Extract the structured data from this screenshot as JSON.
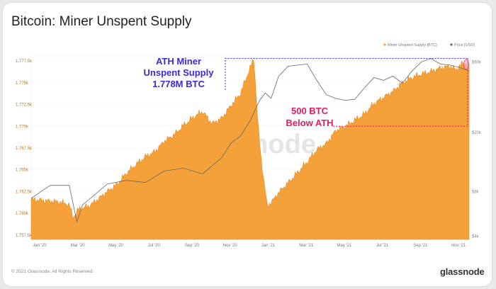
{
  "title": "Bitcoin: Miner Unspent Supply",
  "footer": {
    "copyright": "© 2021 Glassnode. All Rights Reserved.",
    "brand": "glassnode"
  },
  "watermark": "glassnode",
  "chart_data": {
    "type": "area",
    "title": "Bitcoin: Miner Unspent Supply",
    "legend": {
      "placement": "top-right",
      "entries": [
        "Miner Unspent Supply [BTC]",
        "Price [USD]"
      ]
    },
    "series_colors": {
      "supply": "#f5a13a",
      "supply_edge": "#e8891c",
      "price": "#666666",
      "annotation_blue": "#3a2bd9",
      "annotation_pink": "#e8195f"
    },
    "x_ticks": [
      "Jan '20",
      "Mar '20",
      "May '20",
      "Jul '20",
      "Sep '20",
      "Nov '20",
      "Jan '21",
      "Mar '21",
      "May '21",
      "Jul '21",
      "Sep '21",
      "Nov '21"
    ],
    "y_left_ticks": [
      "1.777.5k",
      "1.775k",
      "1.772.5k",
      "1.770k",
      "1.767.5k",
      "1.765k",
      "1.762.5k",
      "1.760k",
      "1.757.5k"
    ],
    "y_left_values": [
      1777.5,
      1775,
      1772.5,
      1770,
      1767.5,
      1765,
      1762.5,
      1760,
      1757.5
    ],
    "y_left_range": [
      1757,
      1778
    ],
    "y_right_ticks": [
      "$60k",
      "$20k",
      "$8k",
      "$4k"
    ],
    "y_right_values": [
      60000,
      20000,
      8000,
      4000
    ],
    "y_right_scale": "log",
    "y_right_range": [
      3800,
      65000
    ],
    "x_range": [
      0,
      23
    ],
    "supply": {
      "name": "Miner Unspent Supply [BTC]",
      "x": [
        0,
        0.5,
        1,
        1.5,
        2,
        2.2,
        2.5,
        3,
        3.5,
        4,
        4.5,
        5,
        5.5,
        6,
        6.5,
        7,
        7.5,
        8,
        8.5,
        9,
        9.5,
        10,
        10.5,
        11,
        11.3,
        11.7,
        11.9,
        12.1,
        12.4,
        12.7,
        13,
        13.5,
        14,
        14.5,
        15,
        15.5,
        16,
        16.5,
        17,
        17.5,
        18,
        18.5,
        19,
        19.5,
        20,
        20.5,
        21,
        21.5,
        22,
        22.3,
        22.7,
        23
      ],
      "values": [
        1761.6,
        1761.5,
        1761.4,
        1761.3,
        1761.0,
        1759.5,
        1760.5,
        1760.8,
        1761.6,
        1762.5,
        1763.3,
        1764.6,
        1765.6,
        1766.5,
        1767.1,
        1768.3,
        1769.0,
        1770.1,
        1771.0,
        1771.7,
        1770.3,
        1770.9,
        1772.4,
        1773.8,
        1775.6,
        1777.8,
        1770.5,
        1765.8,
        1760.8,
        1761.5,
        1762.4,
        1763.5,
        1764.7,
        1765.9,
        1767.3,
        1768.0,
        1769.5,
        1770.0,
        1770.7,
        1771.4,
        1772.6,
        1773.3,
        1774.0,
        1775.0,
        1775.6,
        1776.0,
        1776.3,
        1776.7,
        1776.9,
        1776.5,
        1777.3,
        1777.2
      ]
    },
    "price": {
      "name": "Price [USD]",
      "x": [
        0,
        1,
        2,
        2.4,
        2.7,
        3,
        4,
        5,
        6,
        7,
        8,
        9,
        10,
        10.5,
        11,
        11.5,
        12,
        12.3,
        12.6,
        13,
        13.5,
        14,
        14.5,
        15,
        15.5,
        16,
        16.5,
        17,
        17.5,
        18,
        18.5,
        19,
        19.5,
        20,
        20.5,
        21,
        21.5,
        22,
        22.5,
        23
      ],
      "values": [
        7200,
        8800,
        8800,
        5000,
        6500,
        7000,
        9000,
        9500,
        9200,
        11000,
        11500,
        10500,
        13500,
        17000,
        19000,
        24000,
        33000,
        37000,
        34000,
        48000,
        56000,
        57000,
        58000,
        45000,
        36000,
        34000,
        33000,
        33500,
        40000,
        47000,
        45000,
        48000,
        43000,
        52000,
        60000,
        63000,
        58000,
        57000,
        55000,
        52000
      ]
    },
    "annotations": [
      {
        "text_lines": [
          "ATH Miner",
          "Unspent Supply",
          "1.778M BTC"
        ],
        "color": "#3a2bd9",
        "ref_value": 1777.8
      },
      {
        "text_lines": [
          "500 BTC",
          "Below ATH"
        ],
        "color": "#e8195f",
        "ref_value": 1770.0
      }
    ]
  }
}
